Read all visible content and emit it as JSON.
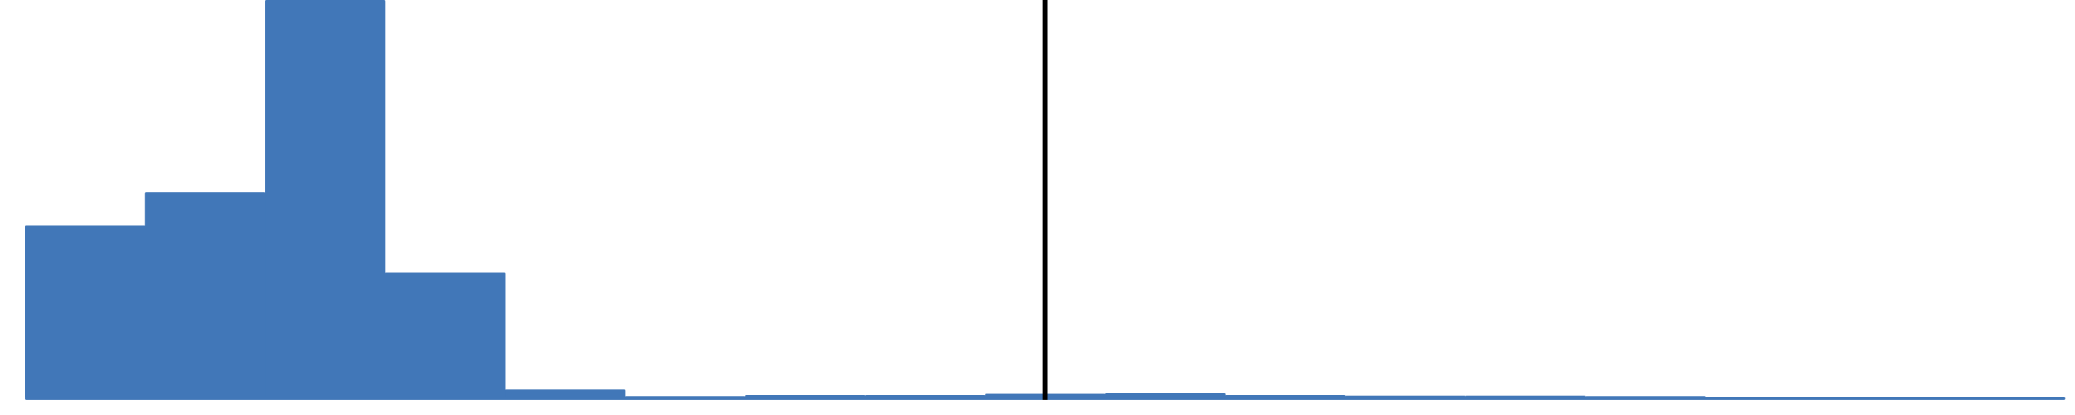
{
  "chart_data": {
    "type": "histogram",
    "title": "",
    "xlabel": "",
    "ylabel": "",
    "bars": [
      {
        "bin": 1,
        "value": 250
      },
      {
        "bin": 2,
        "value": 298
      },
      {
        "bin": 3,
        "value": 576
      },
      {
        "bin": 4,
        "value": 182
      },
      {
        "bin": 5,
        "value": 13
      },
      {
        "bin": 6,
        "value": 3
      },
      {
        "bin": 7,
        "value": 5
      },
      {
        "bin": 8,
        "value": 5
      },
      {
        "bin": 9,
        "value": 7
      },
      {
        "bin": 10,
        "value": 8
      },
      {
        "bin": 11,
        "value": 5
      },
      {
        "bin": 12,
        "value": 4
      },
      {
        "bin": 13,
        "value": 4
      },
      {
        "bin": 14,
        "value": 3
      },
      {
        "bin": 15,
        "value": 2
      },
      {
        "bin": 16,
        "value": 2
      },
      {
        "bin": 17,
        "value": 1
      }
    ],
    "ylim": [
      0,
      576
    ],
    "reference_line": {
      "label": "",
      "position_bin": 8.5
    },
    "bar_color": "#4177b8",
    "reference_line_color": "#000000",
    "grid": false,
    "legend": "none"
  }
}
